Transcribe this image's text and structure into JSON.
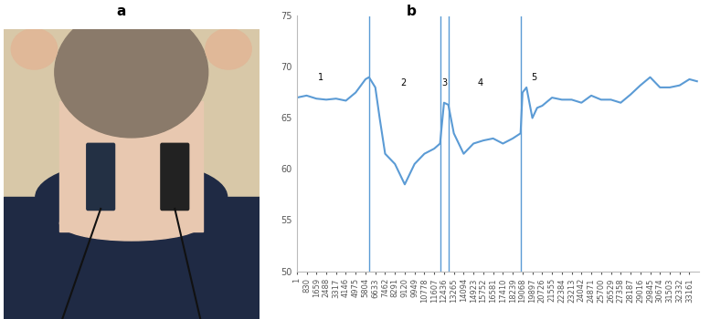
{
  "panel_labels": [
    "a",
    "b"
  ],
  "chart_data": {
    "type": "line",
    "color": "#5b9bd5",
    "grid": false,
    "x": [
      1,
      830,
      1659,
      2488,
      3317,
      4146,
      4975,
      5804,
      6100,
      6633,
      7000,
      7462,
      8291,
      9120,
      9949,
      10778,
      11607,
      12100,
      12436,
      12800,
      13265,
      14094,
      14923,
      15752,
      16581,
      17410,
      18239,
      18900,
      19068,
      19400,
      19897,
      20300,
      20726,
      21555,
      22384,
      23213,
      24042,
      24871,
      25700,
      26529,
      27358,
      28187,
      29016,
      29845,
      30674,
      31503,
      32332,
      33161,
      33800
    ],
    "values": [
      67.0,
      67.2,
      66.9,
      66.8,
      66.9,
      66.7,
      67.5,
      68.8,
      69.0,
      68.0,
      65.0,
      61.5,
      60.5,
      58.5,
      60.5,
      61.5,
      62.0,
      62.5,
      66.5,
      66.3,
      63.5,
      61.5,
      62.5,
      62.8,
      63.0,
      62.5,
      63.0,
      63.5,
      67.5,
      68.0,
      65.0,
      66.0,
      66.2,
      67.0,
      66.8,
      66.8,
      66.5,
      67.2,
      66.8,
      66.8,
      66.5,
      67.3,
      68.2,
      69.0,
      68.0,
      68.0,
      68.2,
      68.8,
      68.6
    ],
    "xlim": [
      1,
      34000
    ],
    "xticks": [
      1,
      830,
      1659,
      2488,
      3317,
      4146,
      4975,
      5804,
      6633,
      7462,
      8291,
      9120,
      9949,
      10778,
      11607,
      12436,
      13265,
      14094,
      14923,
      15752,
      16581,
      17410,
      18239,
      19068,
      19897,
      20726,
      21555,
      22384,
      23213,
      24042,
      24871,
      25700,
      26529,
      27358,
      28187,
      29016,
      29845,
      30674,
      31503,
      32332,
      33161
    ],
    "ylim": [
      50,
      75
    ],
    "yticks": [
      50,
      55,
      60,
      65,
      70,
      75
    ],
    "vertical_lines": [
      6100,
      12100,
      12800,
      18900
    ],
    "annotations": [
      {
        "text": "1",
        "x": 2000,
        "y": 68.5
      },
      {
        "text": "2",
        "x": 9000,
        "y": 68.0
      },
      {
        "text": "3",
        "x": 12450,
        "y": 68.0
      },
      {
        "text": "4",
        "x": 15500,
        "y": 68.0
      },
      {
        "text": "5",
        "x": 20000,
        "y": 68.5
      }
    ]
  }
}
